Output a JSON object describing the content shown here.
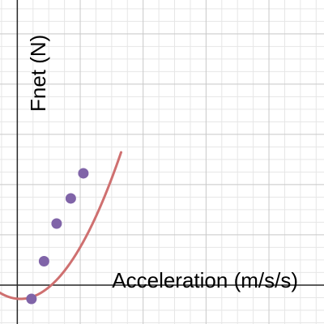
{
  "chart_data": {
    "type": "scatter",
    "xlabel": "Acceleration (m/s/s)",
    "ylabel": "Fnet (N)",
    "xlim": [
      -0.55,
      9.75
    ],
    "ylim": [
      -1.55,
      11.35
    ],
    "grid": true,
    "series": [
      {
        "kind": "points",
        "color": "#8064a8",
        "x": [
          0.45,
          0.85,
          1.25,
          1.7,
          2.1
        ],
        "y": [
          -0.55,
          0.95,
          2.45,
          3.45,
          4.45
        ]
      },
      {
        "kind": "curve",
        "color": "#cf7070",
        "equation": {
          "form": "y = a(x - h)^2 + k",
          "a": 0.57,
          "h": 0.1,
          "k": -0.55
        },
        "x_range": [
          -0.6,
          3.3
        ]
      }
    ]
  }
}
